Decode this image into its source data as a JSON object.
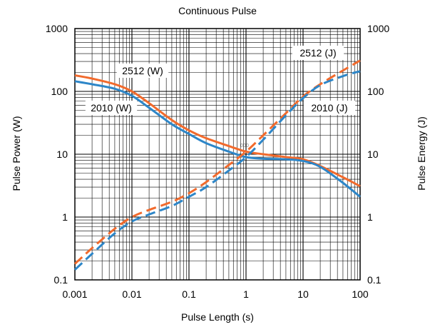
{
  "chart_data": {
    "type": "line",
    "title": "Continuous Pulse",
    "xlabel": "Pulse Length (s)",
    "ylabel_left": "Pulse Power (W)",
    "ylabel_right": "Pulse Energy (J)",
    "x_scale": "log",
    "y_scale": "log",
    "xlim": [
      0.001,
      100
    ],
    "ylim": [
      0.1,
      1000
    ],
    "x_ticks": [
      "0.001",
      "0.01",
      "0.1",
      "1",
      "10",
      "100"
    ],
    "y_ticks_left": [
      "0.1",
      "1",
      "10",
      "100",
      "1000"
    ],
    "y_ticks_right": [
      "0.1",
      "1",
      "10",
      "100",
      "1000"
    ],
    "grid": true,
    "legend_placement": "none",
    "colors": {
      "orange": "#f26a2c",
      "blue": "#2d86c8"
    },
    "marker_text": "000",
    "series": [
      {
        "name": "2512 (W)",
        "color": "orange",
        "dash": false,
        "axis": "left",
        "x": [
          0.001,
          0.002,
          0.005,
          0.01,
          0.02,
          0.05,
          0.1,
          0.2,
          0.5,
          1,
          2,
          5,
          10,
          20,
          50,
          100
        ],
        "y": [
          180,
          160,
          130,
          100,
          65,
          35,
          24,
          18,
          13.5,
          11,
          10,
          9,
          8.3,
          6.5,
          4.3,
          3.1
        ]
      },
      {
        "name": "2010 (W)",
        "color": "blue",
        "dash": false,
        "axis": "left",
        "x": [
          0.001,
          0.002,
          0.005,
          0.01,
          0.02,
          0.05,
          0.1,
          0.2,
          0.5,
          1,
          2,
          5,
          10,
          20,
          50,
          100
        ],
        "y": [
          145,
          130,
          110,
          85,
          55,
          30,
          21,
          15,
          11,
          9,
          8.5,
          8.3,
          7.8,
          6.3,
          3.5,
          2.1
        ]
      },
      {
        "name": "2512 (J)",
        "color": "orange",
        "dash": true,
        "axis": "right",
        "x": [
          0.001,
          0.002,
          0.005,
          0.01,
          0.02,
          0.05,
          0.1,
          0.2,
          0.5,
          1,
          2,
          5,
          10,
          20,
          50,
          100
        ],
        "y": [
          0.18,
          0.32,
          0.65,
          1.0,
          1.3,
          1.75,
          2.4,
          3.6,
          6.75,
          11,
          20,
          45,
          83,
          130,
          215,
          310
        ]
      },
      {
        "name": "2010 (J)",
        "color": "blue",
        "dash": true,
        "axis": "right",
        "x": [
          0.001,
          0.002,
          0.005,
          0.01,
          0.02,
          0.05,
          0.1,
          0.2,
          0.5,
          1,
          2,
          5,
          10,
          20,
          50,
          100
        ],
        "y": [
          0.145,
          0.26,
          0.55,
          0.85,
          1.1,
          1.5,
          2.1,
          3.0,
          5.5,
          9,
          17,
          41.5,
          78,
          126,
          175,
          210
        ]
      }
    ]
  }
}
